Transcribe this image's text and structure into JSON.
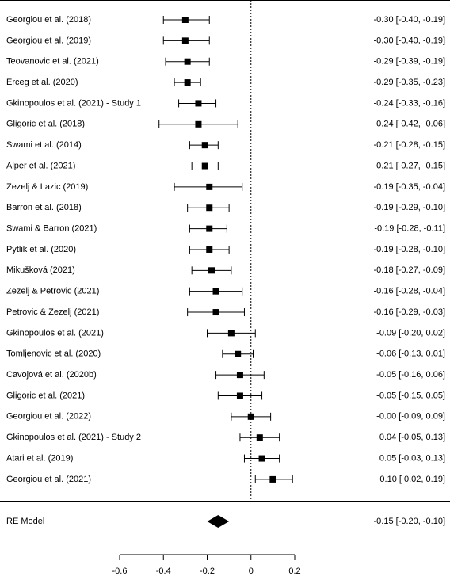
{
  "chart_data": {
    "type": "forest",
    "categories": [
      "Georgiou et al. (2018)",
      "Georgiou et al. (2019)",
      "Teovanovic et al. (2021)",
      "Erceg et al. (2020)",
      "Gkinopoulos et al. (2021) - Study 1",
      "Gligoric et al. (2018)",
      "Swami et al. (2014)",
      "Alper et al. (2021)",
      "Zezelj & Lazic (2019)",
      "Barron et al. (2018)",
      "Swami & Barron (2021)",
      "Pytlik et al. (2020)",
      "Mikušková (2021)",
      "Zezelj & Petrovic (2021)",
      "Petrovic & Zezelj (2021)",
      "Gkinopoulos et al. (2021)",
      "Tomljenovic et al. (2020)",
      "Cavojová et al. (2020b)",
      "Gligoric et al. (2021)",
      "Georgiou et al. (2022)",
      "Gkinopoulos et al. (2021) - Study 2",
      "Atari et al. (2019)",
      "Georgiou et al. (2021)"
    ],
    "values": [
      -0.3,
      -0.3,
      -0.29,
      -0.29,
      -0.24,
      -0.24,
      -0.21,
      -0.21,
      -0.19,
      -0.19,
      -0.19,
      -0.19,
      -0.18,
      -0.16,
      -0.16,
      -0.09,
      -0.06,
      -0.05,
      -0.05,
      -0.0,
      0.04,
      0.05,
      0.1
    ],
    "lower": [
      -0.4,
      -0.4,
      -0.39,
      -0.35,
      -0.33,
      -0.42,
      -0.28,
      -0.27,
      -0.35,
      -0.29,
      -0.28,
      -0.28,
      -0.27,
      -0.28,
      -0.29,
      -0.2,
      -0.13,
      -0.16,
      -0.15,
      -0.09,
      -0.05,
      -0.03,
      0.02
    ],
    "upper": [
      -0.19,
      -0.19,
      -0.19,
      -0.23,
      -0.16,
      -0.06,
      -0.15,
      -0.15,
      -0.04,
      -0.1,
      -0.11,
      -0.1,
      -0.09,
      -0.04,
      -0.03,
      0.02,
      0.01,
      0.06,
      0.05,
      0.09,
      0.13,
      0.13,
      0.19
    ],
    "value_labels": [
      "-0.30 [-0.40, -0.19]",
      "-0.30 [-0.40, -0.19]",
      "-0.29 [-0.39, -0.19]",
      "-0.29 [-0.35, -0.23]",
      "-0.24 [-0.33, -0.16]",
      "-0.24 [-0.42, -0.06]",
      "-0.21 [-0.28, -0.15]",
      "-0.21 [-0.27, -0.15]",
      "-0.19 [-0.35, -0.04]",
      "-0.19 [-0.29, -0.10]",
      "-0.19 [-0.28, -0.11]",
      "-0.19 [-0.28, -0.10]",
      "-0.18 [-0.27, -0.09]",
      "-0.16 [-0.28, -0.04]",
      "-0.16 [-0.29, -0.03]",
      "-0.09 [-0.20, 0.02]",
      "-0.06 [-0.13, 0.01]",
      "-0.05 [-0.16, 0.06]",
      "-0.05 [-0.15, 0.05]",
      "-0.00 [-0.09, 0.09]",
      "0.04 [-0.05, 0.13]",
      "0.05 [-0.03, 0.13]",
      "0.10 [ 0.02, 0.19]"
    ],
    "summary": {
      "label": "RE Model",
      "value": -0.15,
      "lower": -0.2,
      "upper": -0.1,
      "value_label": "-0.15 [-0.20, -0.10]"
    },
    "xlim": [
      -0.6,
      0.2
    ],
    "xticks": [
      -0.6,
      -0.4,
      -0.2,
      0,
      0.2
    ],
    "color": "#000000"
  }
}
